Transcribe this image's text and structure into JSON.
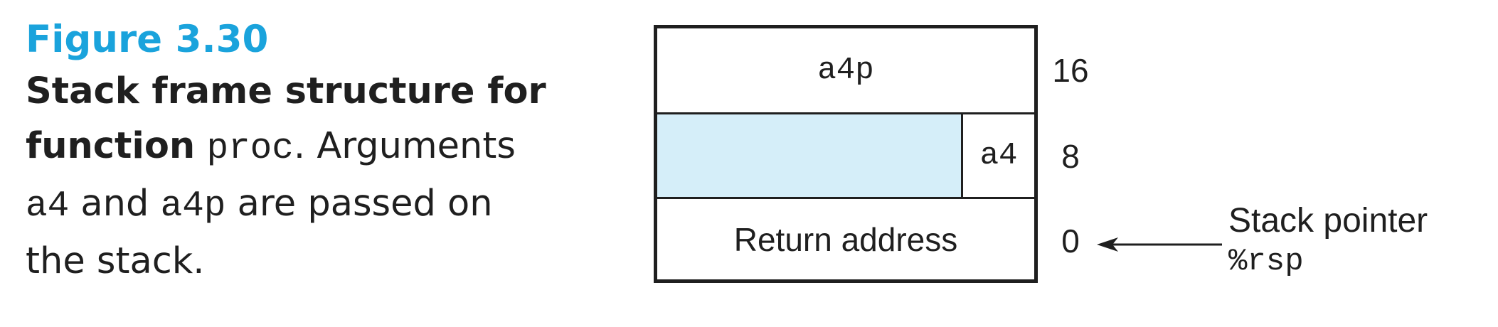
{
  "caption": {
    "figure_label": "Figure 3.30",
    "line1_bold": "Stack frame structure for",
    "line2_bold": "function",
    "line2_code": "proc",
    "line2_rest": ". Arguments",
    "line3_code1": "a4",
    "line3_mid": " and ",
    "line3_code2": "a4p",
    "line3_rest": " are passed on",
    "line4": "the stack."
  },
  "diagram": {
    "cells": {
      "top": "a4p",
      "middle": "a4",
      "bottom": "Return address"
    },
    "offsets": [
      "16",
      "8",
      "0"
    ],
    "pointer": {
      "label": "Stack pointer",
      "register": "%rsp"
    },
    "colors": {
      "padding_fill": "#d5eef9",
      "figure_label": "#1aa3dc",
      "stroke": "#1f1f1f"
    }
  }
}
